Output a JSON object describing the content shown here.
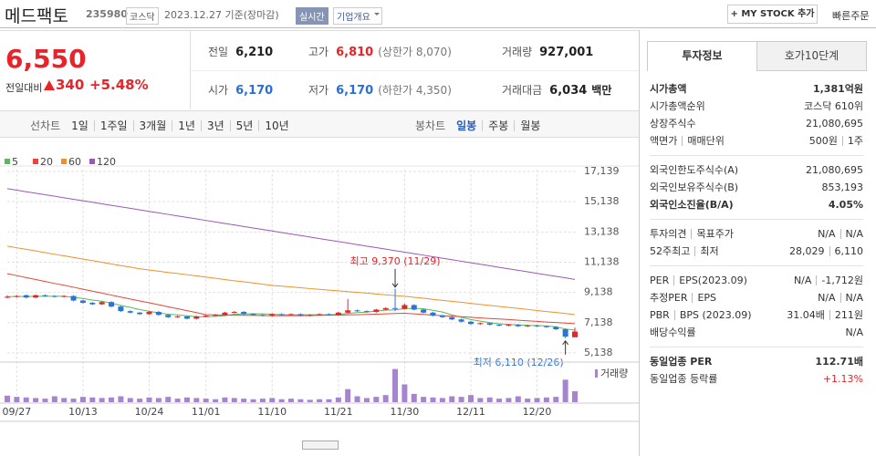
{
  "header": {
    "name": "메드팩토",
    "code": "235980",
    "market": "코스닥",
    "date": "2023.12.27 기준(장마감)",
    "realtime": "실시간",
    "company_info": "기업개요",
    "my_stock": "+ MY STOCK 추가",
    "quick_order": "빠른주문"
  },
  "price": {
    "current": "6,550",
    "change_label": "전일대비",
    "change": "340",
    "change_pct": "+5.48%"
  },
  "stats": [
    [
      {
        "label": "전일",
        "value": "6,210"
      },
      {
        "label": "고가",
        "value": "6,810",
        "note": "(상한가 8,070)",
        "color": "#e8242a"
      },
      {
        "label": "거래량",
        "value": "927,001"
      }
    ],
    [
      {
        "label": "시가",
        "value": "6,170",
        "color": "#2b6fd6"
      },
      {
        "label": "저가",
        "value": "6,170",
        "note": "(하한가 4,350)",
        "color": "#2b6fd6"
      },
      {
        "label": "거래대금",
        "value": "6,034",
        "note": "백만"
      }
    ]
  ],
  "toolbar": {
    "line_label": "선차트",
    "periods": [
      "1일",
      "1주일",
      "3개월",
      "1년",
      "3년",
      "5년",
      "10년"
    ],
    "candle_label": "봉차트",
    "candle_periods": [
      "일봉",
      "주봉",
      "월봉"
    ],
    "selected_index": 0
  },
  "chart_data": [
    {
      "type": "candlestick",
      "categories": [
        null,
        "09/27",
        null,
        null,
        null,
        null,
        null,
        null,
        "10/13",
        null,
        null,
        null,
        null,
        null,
        null,
        "10/24",
        null,
        null,
        null,
        null,
        null,
        "11/01",
        null,
        null,
        null,
        null,
        null,
        null,
        "11/10",
        null,
        null,
        null,
        null,
        null,
        null,
        "11/21",
        null,
        null,
        null,
        null,
        null,
        null,
        "11/30",
        null,
        null,
        null,
        null,
        null,
        null,
        "12/11",
        null,
        null,
        null,
        null,
        null,
        null,
        "12/20",
        null,
        null,
        null,
        null
      ],
      "open": [
        8800,
        8850,
        8950,
        8800,
        8950,
        8900,
        8850,
        8900,
        8600,
        8450,
        8350,
        8500,
        8200,
        7900,
        7800,
        7700,
        7850,
        7650,
        7500,
        7550,
        7400,
        7550,
        7600,
        7650,
        7800,
        7850,
        7700,
        7650,
        7600,
        7700,
        7650,
        7700,
        7600,
        7650,
        7700,
        7650,
        7800,
        7950,
        7900,
        7850,
        8000,
        8100,
        8050,
        8300,
        8000,
        7800,
        7600,
        7500,
        7350,
        7200,
        7050,
        7100,
        7000,
        6950,
        7000,
        6900,
        6950,
        6900,
        6850,
        6700,
        6170
      ],
      "high": [
        8950,
        8950,
        9000,
        9000,
        9000,
        8950,
        8950,
        8950,
        8650,
        8500,
        8550,
        8550,
        8250,
        7950,
        7850,
        7900,
        7900,
        7700,
        7600,
        7600,
        7600,
        7650,
        7700,
        7850,
        7900,
        7900,
        7750,
        7700,
        7750,
        7750,
        7750,
        7750,
        7700,
        7750,
        7750,
        7850,
        8700,
        8000,
        7950,
        8050,
        8150,
        9370,
        8400,
        8350,
        8050,
        7850,
        7650,
        7550,
        7400,
        7250,
        7150,
        7150,
        7050,
        7050,
        7050,
        7000,
        7000,
        6950,
        6900,
        6750,
        6810
      ],
      "low": [
        8750,
        8800,
        8750,
        8750,
        8850,
        8800,
        8800,
        8550,
        8400,
        8300,
        8300,
        8150,
        7850,
        7750,
        7650,
        7650,
        7600,
        7450,
        7450,
        7350,
        7350,
        7500,
        7550,
        7600,
        7750,
        7650,
        7600,
        7550,
        7550,
        7600,
        7600,
        7550,
        7550,
        7600,
        7600,
        7600,
        7750,
        7850,
        7800,
        7800,
        7950,
        7900,
        8000,
        7950,
        7750,
        7550,
        7450,
        7300,
        7150,
        7000,
        7000,
        6950,
        6900,
        6900,
        6850,
        6850,
        6850,
        6800,
        6650,
        6110,
        6170
      ],
      "close": [
        8850,
        8900,
        8800,
        8950,
        8900,
        8850,
        8900,
        8600,
        8450,
        8350,
        8500,
        8200,
        7900,
        7800,
        7700,
        7850,
        7650,
        7500,
        7550,
        7400,
        7550,
        7600,
        7650,
        7800,
        7850,
        7700,
        7650,
        7600,
        7700,
        7650,
        7700,
        7600,
        7650,
        7700,
        7650,
        7800,
        7950,
        7900,
        7850,
        8000,
        8100,
        8050,
        8300,
        8000,
        7800,
        7600,
        7500,
        7350,
        7200,
        7050,
        7100,
        7000,
        6950,
        7000,
        6900,
        6950,
        6900,
        6850,
        6700,
        6210,
        6550
      ],
      "up_color": "#e8242a",
      "down_color": "#2b74d6",
      "series": [
        {
          "name": "5",
          "color": "#5cb85c",
          "values": [
            8850,
            8870,
            8860,
            8880,
            8880,
            8880,
            8880,
            8810,
            8740,
            8630,
            8560,
            8420,
            8280,
            8150,
            8000,
            7890,
            7780,
            7700,
            7650,
            7590,
            7530,
            7520,
            7550,
            7600,
            7690,
            7720,
            7730,
            7720,
            7700,
            7660,
            7660,
            7650,
            7660,
            7660,
            7660,
            7680,
            7750,
            7800,
            7830,
            7900,
            7960,
            7980,
            8060,
            8090,
            8050,
            7950,
            7840,
            7650,
            7490,
            7340,
            7240,
            7140,
            7060,
            7020,
            6990,
            6960,
            6940,
            6920,
            6860,
            6720,
            6640
          ]
        },
        {
          "name": "20",
          "color": "#e9453a",
          "values": [
            10380,
            10250,
            10120,
            9990,
            9860,
            9730,
            9610,
            9480,
            9350,
            9220,
            9090,
            8960,
            8830,
            8700,
            8570,
            8450,
            8320,
            8190,
            8060,
            7930,
            7800,
            7670,
            7650,
            7640,
            7630,
            7620,
            7620,
            7610,
            7600,
            7600,
            7600,
            7600,
            7610,
            7620,
            7630,
            7640,
            7650,
            7660,
            7680,
            7700,
            7720,
            7740,
            7760,
            7720,
            7680,
            7640,
            7600,
            7570,
            7530,
            7490,
            7450,
            7410,
            7380,
            7340,
            7300,
            7260,
            7220,
            7180,
            7150,
            7110,
            7070
          ]
        },
        {
          "name": "60",
          "color": "#f0902a",
          "values": [
            12200,
            12090,
            11990,
            11880,
            11770,
            11660,
            11560,
            11450,
            11340,
            11240,
            11130,
            11020,
            10910,
            10810,
            10700,
            10620,
            10540,
            10460,
            10390,
            10310,
            10230,
            10150,
            10070,
            9990,
            9910,
            9840,
            9760,
            9680,
            9600,
            9550,
            9500,
            9450,
            9390,
            9340,
            9290,
            9240,
            9190,
            9140,
            9090,
            9030,
            8980,
            8930,
            8880,
            8810,
            8750,
            8680,
            8610,
            8550,
            8480,
            8410,
            8340,
            8280,
            8210,
            8140,
            8080,
            8010,
            7940,
            7870,
            7810,
            7740,
            7670
          ]
        },
        {
          "name": "120",
          "color": "#9b59b6",
          "values": [
            16000,
            15900,
            15800,
            15700,
            15600,
            15500,
            15400,
            15300,
            15200,
            15100,
            15000,
            14900,
            14800,
            14700,
            14600,
            14500,
            14400,
            14300,
            14200,
            14100,
            14000,
            13900,
            13800,
            13700,
            13600,
            13500,
            13400,
            13300,
            13200,
            13100,
            13000,
            12900,
            12800,
            12700,
            12600,
            12500,
            12400,
            12300,
            12200,
            12100,
            12000,
            11900,
            11800,
            11700,
            11600,
            11500,
            11400,
            11300,
            11200,
            11100,
            11000,
            10900,
            10800,
            10700,
            10600,
            10500,
            10400,
            10300,
            10200,
            10100,
            10000
          ]
        }
      ],
      "ylim": [
        4650,
        17260
      ],
      "yticks": [
        {
          "value": 17139,
          "label": "17,139"
        },
        {
          "value": 15138,
          "label": "15,138"
        },
        {
          "value": 13138,
          "label": "13,138"
        },
        {
          "value": 11138,
          "label": "11,138"
        },
        {
          "value": 9138,
          "label": "9,138"
        },
        {
          "value": 7138,
          "label": "7,138"
        },
        {
          "value": 5138,
          "label": "5,138"
        }
      ],
      "grid": true,
      "annotations": [
        {
          "text": "최고 9,370 (11/29)",
          "value": 9370,
          "of": "high",
          "color": "#e8242a"
        },
        {
          "text": "최저 6,110 (12/26)",
          "value": 6110,
          "of": "low",
          "color": "#2b74d6"
        }
      ]
    },
    {
      "type": "bar",
      "label": "거래량",
      "color": "#a784cf",
      "ylim": [
        0,
        3000000
      ],
      "values": [
        550000,
        450000,
        400000,
        350000,
        300000,
        500000,
        350000,
        300000,
        450000,
        400000,
        350000,
        400000,
        500000,
        350000,
        300000,
        400000,
        350000,
        450000,
        300000,
        400000,
        350000,
        300000,
        250000,
        400000,
        350000,
        300000,
        250000,
        300000,
        350000,
        250000,
        300000,
        250000,
        200000,
        250000,
        250000,
        400000,
        1100000,
        500000,
        350000,
        450000,
        600000,
        2800000,
        1500000,
        700000,
        450000,
        400000,
        350000,
        500000,
        450000,
        600000,
        350000,
        400000,
        300000,
        350000,
        500000,
        300000,
        350000,
        400000,
        450000,
        1900000,
        927001
      ]
    }
  ],
  "side_panel": {
    "tabs": [
      "투자정보",
      "호가10단계"
    ],
    "sections": [
      {
        "rows": [
          {
            "label": [
              "시가총액"
            ],
            "value": [
              "1,381억원"
            ],
            "bold": true
          },
          {
            "label": [
              "시가총액순위"
            ],
            "value": [
              "코스닥 610위"
            ]
          },
          {
            "label": [
              "상장주식수"
            ],
            "value": [
              "21,080,695"
            ]
          },
          {
            "label": [
              "액면가",
              "매매단위"
            ],
            "value": [
              "500원",
              "1주"
            ]
          }
        ]
      },
      {
        "rows": [
          {
            "label": [
              "외국인한도주식수(A)"
            ],
            "value": [
              "21,080,695"
            ]
          },
          {
            "label": [
              "외국인보유주식수(B)"
            ],
            "value": [
              "853,193"
            ]
          },
          {
            "label": [
              "외국인소진율(B/A)"
            ],
            "value": [
              "4.05%"
            ],
            "bold": true
          }
        ]
      },
      {
        "rows": [
          {
            "label": [
              "투자의견",
              "목표주가"
            ],
            "value": [
              "N/A",
              "N/A"
            ]
          },
          {
            "label": [
              "52주최고",
              "최저"
            ],
            "value": [
              "28,029",
              "6,110"
            ]
          }
        ]
      },
      {
        "rows": [
          {
            "label": [
              "PER",
              "EPS(2023.09)"
            ],
            "value": [
              "N/A",
              "-1,712원"
            ]
          },
          {
            "label": [
              "추정PER",
              "EPS"
            ],
            "value": [
              "N/A",
              "N/A"
            ]
          },
          {
            "label": [
              "PBR",
              "BPS (2023.09)"
            ],
            "value": [
              "31.04배",
              "211원"
            ]
          },
          {
            "label": [
              "배당수익률"
            ],
            "value": [
              "N/A"
            ]
          }
        ]
      },
      {
        "rows": [
          {
            "label": [
              "동일업종 PER"
            ],
            "value": [
              "112.71배"
            ],
            "bold": true
          },
          {
            "label": [
              "동일업종 등락률"
            ],
            "value": [
              "+1.13%"
            ],
            "color": "#e8242a"
          }
        ]
      }
    ]
  }
}
